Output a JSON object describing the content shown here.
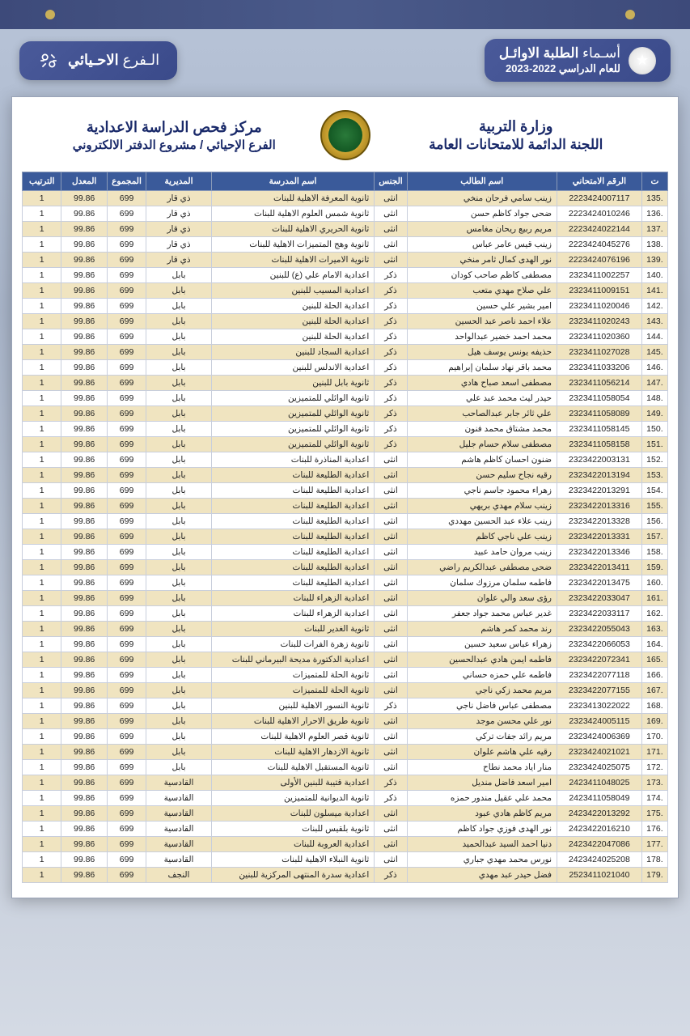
{
  "banner": {
    "title_prefix": "أسـماء",
    "title_bold": "الطلبة الاوائـل",
    "subtitle": "للعام الدراسي 2022-2023",
    "branch_prefix": "الـفرع",
    "branch_bold": "الاحـيائي"
  },
  "sheet": {
    "ministry": "وزارة التربية",
    "committee": "اللجنة الدائمة للامتحانات العامة",
    "center_title": "مركز فحص الدراسة الاعدادية",
    "center_sub": "الفرع الإحيائي / مشروع الدفتر الالكتروني"
  },
  "columns": [
    "ت",
    "الرقم الامتحاني",
    "اسم الطالب",
    "الجنس",
    "اسم المدرسة",
    "المديرية",
    "المجموع",
    "المعدل",
    "الترتيب"
  ],
  "colors": {
    "header_bg": "#3a5a9a",
    "row_even": "#f0e4c0",
    "row_odd": "#ffffff",
    "banner_bg": "#3a4a8a",
    "title_text": "#1a2a6a"
  },
  "rows": [
    {
      "seq": ".135",
      "exam": "2223424007117",
      "name": "زينب سامي فرحان منخي",
      "gender": "انثى",
      "school": "ثانوية المعرفة الاهلية للبنات",
      "dir": "ذي قار",
      "total": "699",
      "avg": "99.86",
      "rank": "1"
    },
    {
      "seq": ".136",
      "exam": "2223424010246",
      "name": "ضحى جواد كاظم حسن",
      "gender": "انثى",
      "school": "ثانوية شمس العلوم الاهلية للبنات",
      "dir": "ذي قار",
      "total": "699",
      "avg": "99.86",
      "rank": "1"
    },
    {
      "seq": ".137",
      "exam": "2223424022144",
      "name": "مريم ربيع ريحان مغامس",
      "gender": "انثى",
      "school": "ثانوية الحريري الاهلية للبنات",
      "dir": "ذي قار",
      "total": "699",
      "avg": "99.86",
      "rank": "1"
    },
    {
      "seq": ".138",
      "exam": "2223424045276",
      "name": "زينب قيس عامر عباس",
      "gender": "انثى",
      "school": "ثانوية وهج المتميزات الاهلية للبنات",
      "dir": "ذي قار",
      "total": "699",
      "avg": "99.86",
      "rank": "1"
    },
    {
      "seq": ".139",
      "exam": "2223424076196",
      "name": "نور الهدى كمال ثامر منخي",
      "gender": "انثى",
      "school": "ثانوية الاميرات الاهلية للبنات",
      "dir": "ذي قار",
      "total": "699",
      "avg": "99.86",
      "rank": "1"
    },
    {
      "seq": ".140",
      "exam": "2323411002257",
      "name": "مصطفى كاظم صاحب كودان",
      "gender": "ذكر",
      "school": "اعدادية الامام علي (ع) للبنين",
      "dir": "بابل",
      "total": "699",
      "avg": "99.86",
      "rank": "1"
    },
    {
      "seq": ".141",
      "exam": "2323411009151",
      "name": "علي صلاح مهدي متعب",
      "gender": "ذكر",
      "school": "اعدادية المسيب للبنين",
      "dir": "بابل",
      "total": "699",
      "avg": "99.86",
      "rank": "1"
    },
    {
      "seq": ".142",
      "exam": "2323411020046",
      "name": "امير بشير علي حسين",
      "gender": "ذكر",
      "school": "اعدادية الحلة للبنين",
      "dir": "بابل",
      "total": "699",
      "avg": "99.86",
      "rank": "1"
    },
    {
      "seq": ".143",
      "exam": "2323411020243",
      "name": "علاء احمد ناصر عبد الحسين",
      "gender": "ذكر",
      "school": "اعدادية الحلة للبنين",
      "dir": "بابل",
      "total": "699",
      "avg": "99.86",
      "rank": "1"
    },
    {
      "seq": ".144",
      "exam": "2323411020360",
      "name": "محمد احمد خضير عبدالواحد",
      "gender": "ذكر",
      "school": "اعدادية الحلة للبنين",
      "dir": "بابل",
      "total": "699",
      "avg": "99.86",
      "rank": "1"
    },
    {
      "seq": ".145",
      "exam": "2323411027028",
      "name": "حذيفه يونس يوسف هيل",
      "gender": "ذكر",
      "school": "اعدادية السجاد للبنين",
      "dir": "بابل",
      "total": "699",
      "avg": "99.86",
      "rank": "1"
    },
    {
      "seq": ".146",
      "exam": "2323411033206",
      "name": "محمد باقر نهاد سلمان إبراهيم",
      "gender": "ذكر",
      "school": "اعدادية الاندلس للبنين",
      "dir": "بابل",
      "total": "699",
      "avg": "99.86",
      "rank": "1"
    },
    {
      "seq": ".147",
      "exam": "2323411056214",
      "name": "مصطفى اسعد صباح هادي",
      "gender": "ذكر",
      "school": "ثانوية بابل للبنين",
      "dir": "بابل",
      "total": "699",
      "avg": "99.86",
      "rank": "1"
    },
    {
      "seq": ".148",
      "exam": "2323411058054",
      "name": "حيدر ليث محمد عبد علي",
      "gender": "ذكر",
      "school": "ثانوية الوائلي للمتميزين",
      "dir": "بابل",
      "total": "699",
      "avg": "99.86",
      "rank": "1"
    },
    {
      "seq": ".149",
      "exam": "2323411058089",
      "name": "علي ثائر جابر عبدالصاحب",
      "gender": "ذكر",
      "school": "ثانوية الوائلي للمتميزين",
      "dir": "بابل",
      "total": "699",
      "avg": "99.86",
      "rank": "1"
    },
    {
      "seq": ".150",
      "exam": "2323411058145",
      "name": "محمد مشتاق محمد فنون",
      "gender": "ذكر",
      "school": "ثانوية الوائلي للمتميزين",
      "dir": "بابل",
      "total": "699",
      "avg": "99.86",
      "rank": "1"
    },
    {
      "seq": ".151",
      "exam": "2323411058158",
      "name": "مصطفى سلام حسام جليل",
      "gender": "ذكر",
      "school": "ثانوية الوائلي للمتميزين",
      "dir": "بابل",
      "total": "699",
      "avg": "99.86",
      "rank": "1"
    },
    {
      "seq": ".152",
      "exam": "2323422003131",
      "name": "ضنون احسان كاظم هاشم",
      "gender": "انثى",
      "school": "اعدادية المناذرة للبنات",
      "dir": "بابل",
      "total": "699",
      "avg": "99.86",
      "rank": "1"
    },
    {
      "seq": ".153",
      "exam": "2323422013194",
      "name": "رقيه نجاح سليم حسن",
      "gender": "انثى",
      "school": "اعدادية الطليعة للبنات",
      "dir": "بابل",
      "total": "699",
      "avg": "99.86",
      "rank": "1"
    },
    {
      "seq": ".154",
      "exam": "2323422013291",
      "name": "زهراء محمود جاسم ناجي",
      "gender": "انثى",
      "school": "اعدادية الطليعة للبنات",
      "dir": "بابل",
      "total": "699",
      "avg": "99.86",
      "rank": "1"
    },
    {
      "seq": ".155",
      "exam": "2323422013316",
      "name": "زينب سلام مهدي بريهي",
      "gender": "انثى",
      "school": "اعدادية الطليعة للبنات",
      "dir": "بابل",
      "total": "699",
      "avg": "99.86",
      "rank": "1"
    },
    {
      "seq": ".156",
      "exam": "2323422013328",
      "name": "زينب علاء عبد الحسين مهددي",
      "gender": "انثى",
      "school": "اعدادية الطليعة للبنات",
      "dir": "بابل",
      "total": "699",
      "avg": "99.86",
      "rank": "1"
    },
    {
      "seq": ".157",
      "exam": "2323422013331",
      "name": "زينب علي ناجي كاظم",
      "gender": "انثى",
      "school": "اعدادية الطليعة للبنات",
      "dir": "بابل",
      "total": "699",
      "avg": "99.86",
      "rank": "1"
    },
    {
      "seq": ".158",
      "exam": "2323422013346",
      "name": "زينب مروان حامد عبيد",
      "gender": "انثى",
      "school": "اعدادية الطليعة للبنات",
      "dir": "بابل",
      "total": "699",
      "avg": "99.86",
      "rank": "1"
    },
    {
      "seq": ".159",
      "exam": "2323422013411",
      "name": "ضحى مصطفى عبدالكريم راضي",
      "gender": "انثى",
      "school": "اعدادية الطليعة للبنات",
      "dir": "بابل",
      "total": "699",
      "avg": "99.86",
      "rank": "1"
    },
    {
      "seq": ".160",
      "exam": "2323422013475",
      "name": "فاطمه سلمان مرزوك سلمان",
      "gender": "انثى",
      "school": "اعدادية الطليعة للبنات",
      "dir": "بابل",
      "total": "699",
      "avg": "99.86",
      "rank": "1"
    },
    {
      "seq": ".161",
      "exam": "2323422033047",
      "name": "رؤى سعد والي علوان",
      "gender": "انثى",
      "school": "اعدادية الزهراء للبنات",
      "dir": "بابل",
      "total": "699",
      "avg": "99.86",
      "rank": "1"
    },
    {
      "seq": ".162",
      "exam": "2323422033117",
      "name": "غدير عباس محمد جواد جعفر",
      "gender": "انثى",
      "school": "اعدادية الزهراء للبنات",
      "dir": "بابل",
      "total": "699",
      "avg": "99.86",
      "rank": "1"
    },
    {
      "seq": ".163",
      "exam": "2323422055043",
      "name": "رند محمد كمر هاشم",
      "gender": "انثى",
      "school": "ثانوية الغدير للبنات",
      "dir": "بابل",
      "total": "699",
      "avg": "99.86",
      "rank": "1"
    },
    {
      "seq": ".164",
      "exam": "2323422066053",
      "name": "زهراء عباس سعيد حسين",
      "gender": "انثى",
      "school": "ثانوية زهرة الفرات للبنات",
      "dir": "بابل",
      "total": "699",
      "avg": "99.86",
      "rank": "1"
    },
    {
      "seq": ".165",
      "exam": "2323422072341",
      "name": "فاطمه ايمن هادي عبدالحسين",
      "gender": "انثى",
      "school": "اعدادية الدكتورة مديحة البيرماني للبنات",
      "dir": "بابل",
      "total": "699",
      "avg": "99.86",
      "rank": "1"
    },
    {
      "seq": ".166",
      "exam": "2323422077118",
      "name": "فاطمه علي حمزه حساني",
      "gender": "انثى",
      "school": "ثانوية الحلة للمتميزات",
      "dir": "بابل",
      "total": "699",
      "avg": "99.86",
      "rank": "1"
    },
    {
      "seq": ".167",
      "exam": "2323422077155",
      "name": "مريم محمد زكي ناجي",
      "gender": "انثى",
      "school": "ثانوية الحلة للمتميزات",
      "dir": "بابل",
      "total": "699",
      "avg": "99.86",
      "rank": "1"
    },
    {
      "seq": ".168",
      "exam": "2323413022022",
      "name": "مصطفى عباس فاضل ناجي",
      "gender": "ذكر",
      "school": "ثانوية النسور الاهلية للبنين",
      "dir": "بابل",
      "total": "699",
      "avg": "99.86",
      "rank": "1"
    },
    {
      "seq": ".169",
      "exam": "2323424005115",
      "name": "نور علي محسن موجد",
      "gender": "انثى",
      "school": "ثانوية طريق الاحرار الاهلية للبنات",
      "dir": "بابل",
      "total": "699",
      "avg": "99.86",
      "rank": "1"
    },
    {
      "seq": ".170",
      "exam": "2323424006369",
      "name": "مريم رائد جفات تركي",
      "gender": "انثى",
      "school": "ثانوية قصر العلوم الاهلية للبنات",
      "dir": "بابل",
      "total": "699",
      "avg": "99.86",
      "rank": "1"
    },
    {
      "seq": ".171",
      "exam": "2323424021021",
      "name": "رقيه علي هاشم علوان",
      "gender": "انثى",
      "school": "ثانوية الازدهار الاهلية للبنات",
      "dir": "بابل",
      "total": "699",
      "avg": "99.86",
      "rank": "1"
    },
    {
      "seq": ".172",
      "exam": "2323424025075",
      "name": "منار اياد محمد نطاح",
      "gender": "انثى",
      "school": "ثانوية المستقبل الاهلية للبنات",
      "dir": "بابل",
      "total": "699",
      "avg": "99.86",
      "rank": "1"
    },
    {
      "seq": ".173",
      "exam": "2423411048025",
      "name": "امير اسعد فاضل منديل",
      "gender": "ذكر",
      "school": "اعدادية قتيبة للبنين الأولى",
      "dir": "القادسية",
      "total": "699",
      "avg": "99.86",
      "rank": "1"
    },
    {
      "seq": ".174",
      "exam": "2423411058049",
      "name": "محمد علي عقيل مندور حمزه",
      "gender": "ذكر",
      "school": "ثانوية الديوانية للمتميزين",
      "dir": "القادسية",
      "total": "699",
      "avg": "99.86",
      "rank": "1"
    },
    {
      "seq": ".175",
      "exam": "2423422013292",
      "name": "مريم كاظم هادي عبود",
      "gender": "انثى",
      "school": "اعدادية ميسلون للبنات",
      "dir": "القادسية",
      "total": "699",
      "avg": "99.86",
      "rank": "1"
    },
    {
      "seq": ".176",
      "exam": "2423422016210",
      "name": "نور الهدى فوزي جواد كاظم",
      "gender": "انثى",
      "school": "ثانوية بلقيس للبنات",
      "dir": "القادسية",
      "total": "699",
      "avg": "99.86",
      "rank": "1"
    },
    {
      "seq": ".177",
      "exam": "2423422047086",
      "name": "دنيا احمد السيد عبدالحميد",
      "gender": "انثى",
      "school": "اعدادية العروبة للبنات",
      "dir": "القادسية",
      "total": "699",
      "avg": "99.86",
      "rank": "1"
    },
    {
      "seq": ".178",
      "exam": "2423424025208",
      "name": "نورس محمد مهدي جباري",
      "gender": "انثى",
      "school": "ثانوية النبلاء الاهلية للبنات",
      "dir": "القادسية",
      "total": "699",
      "avg": "99.86",
      "rank": "1"
    },
    {
      "seq": ".179",
      "exam": "2523411021040",
      "name": "فضل حيدر عبد مهدي",
      "gender": "ذكر",
      "school": "اعدادية سدرة المنتهى المركزية للبنين",
      "dir": "النجف",
      "total": "699",
      "avg": "99.86",
      "rank": "1"
    }
  ]
}
